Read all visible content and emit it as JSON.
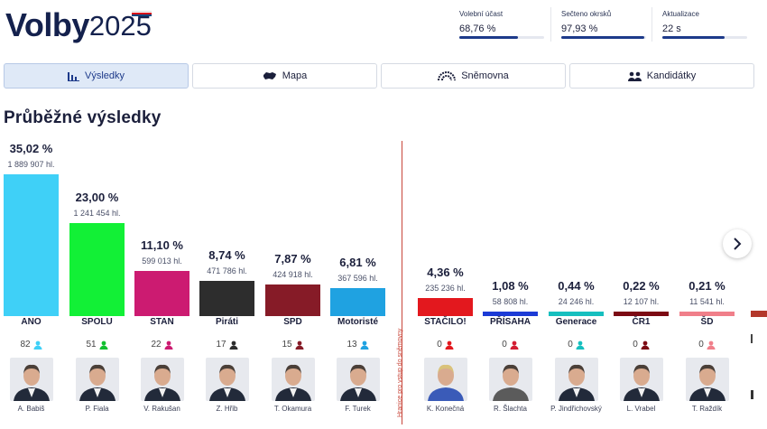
{
  "header": {
    "logo_word": "Volby",
    "logo_year": "2025",
    "stats": [
      {
        "label": "Volební účast",
        "value": "68,76 %",
        "progress": 0.6876
      },
      {
        "label": "Sečteno okrsků",
        "value": "97,93 %",
        "progress": 0.9793
      },
      {
        "label": "Aktualizace",
        "value": "22 s",
        "progress": 0.73
      }
    ]
  },
  "tabs": [
    {
      "label": "Výsledky",
      "icon": "bar-chart-icon",
      "active": true
    },
    {
      "label": "Mapa",
      "icon": "map-icon",
      "active": false
    },
    {
      "label": "Sněmovna",
      "icon": "parliament-icon",
      "active": false
    },
    {
      "label": "Kandidátky",
      "icon": "people-icon",
      "active": false
    }
  ],
  "page_title": "Průběžné výsledky",
  "threshold_label": "Hranice pro vstup do sněmovny",
  "colors": {
    "accent": "#1d3a8a",
    "threshold": "#c8463a",
    "active_tab_bg": "#dfe9f7"
  },
  "chart_data": {
    "type": "bar",
    "categories": [
      "ANO",
      "SPOLU",
      "STAN",
      "Piráti",
      "SPD",
      "Motoristé",
      "STAČILO!",
      "PŘÍSAHA",
      "Generace",
      "ČR1",
      "ŠD"
    ],
    "series": [
      {
        "values": [
          35.02,
          23.0,
          11.1,
          8.74,
          7.87,
          6.81,
          4.36,
          1.08,
          0.44,
          0.22,
          0.21
        ]
      }
    ],
    "value_labels": [
      "35,02 %",
      "23,00 %",
      "11,10 %",
      "8,74 %",
      "7,87 %",
      "6,81 %",
      "4,36 %",
      "1,08 %",
      "0,44 %",
      "0,22 %",
      "0,21 %"
    ],
    "votes": [
      "1 889 907 hl.",
      "1 241 454 hl.",
      "599 013 hl.",
      "471 786 hl.",
      "424 918 hl.",
      "367 596 hl.",
      "235 236 hl.",
      "58 808 hl.",
      "24 246 hl.",
      "12 107 hl.",
      "11 541 hl."
    ],
    "seats": [
      "82",
      "51",
      "22",
      "17",
      "15",
      "13",
      "0",
      "0",
      "0",
      "0",
      "0"
    ],
    "leaders": [
      "A. Babiš",
      "P. Fiala",
      "V. Rakušan",
      "Z. Hřib",
      "T. Okamura",
      "F. Turek",
      "K. Konečná",
      "R. Šlachta",
      "P. Jindřichovský",
      "L. Vrabel",
      "T. Raždík"
    ],
    "bar_colors": [
      "#3fd0f7",
      "#12f036",
      "#cc1b71",
      "#2d2d2d",
      "#861b27",
      "#1fa2e1",
      "#e3181e",
      "#1c3bd6",
      "#16bfbf",
      "#7c0a14",
      "#f07f8a"
    ],
    "seat_icon_colors": [
      "#3fd0f7",
      "#12c02f",
      "#cc1b71",
      "#2d2d2d",
      "#861b27",
      "#1fa2e1",
      "#e3181e",
      "#d31d32",
      "#16bfbf",
      "#7c0a14",
      "#f07f8a"
    ],
    "threshold_percent": 5,
    "ylim": [
      0,
      35.02
    ]
  }
}
